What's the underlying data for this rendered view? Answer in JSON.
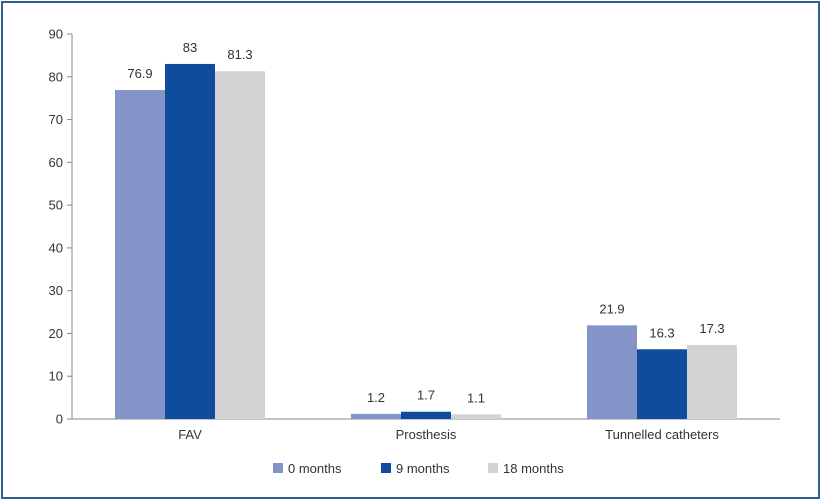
{
  "chart_data": {
    "type": "bar",
    "title": "",
    "xlabel": "",
    "ylabel": "",
    "categories": [
      "FAV",
      "Prosthesis",
      "Tunnelled catheters"
    ],
    "series": [
      {
        "name": "0 months",
        "values": [
          76.9,
          1.2,
          21.9
        ],
        "color": "#8594c8"
      },
      {
        "name": "9 months",
        "values": [
          83,
          1.7,
          16.3
        ],
        "color": "#0f4c9e"
      },
      {
        "name": "18 months",
        "values": [
          81.3,
          1.1,
          17.3
        ],
        "color": "#d3d3d3"
      }
    ],
    "ylim": [
      0,
      90
    ],
    "yticks": [
      0,
      10,
      20,
      30,
      40,
      50,
      60,
      70,
      80,
      90
    ],
    "data_labels": [
      [
        "76.9",
        "1.2",
        "21.9"
      ],
      [
        "83",
        "1.7",
        "16.3"
      ],
      [
        "81.3",
        "1.1",
        "17.3"
      ]
    ],
    "grid": false,
    "legend_position": "bottom-center"
  }
}
